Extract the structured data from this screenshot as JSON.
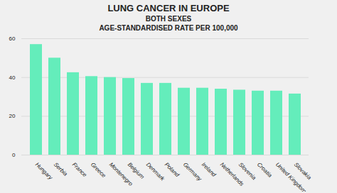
{
  "chart_data": {
    "type": "bar",
    "title": "LUNG CANCER IN EUROPE",
    "subtitle": [
      "BOTH SEXES",
      "AGE-STANDARDISED RATE PER 100,000"
    ],
    "categories": [
      "Hungary",
      "Serbia",
      "France",
      "Greece",
      "Montenegro",
      "Belgium",
      "Denmark",
      "Poland",
      "Germany",
      "Ireland",
      "Netherlands",
      "Slovenia",
      "Croatia",
      "United Kingdom",
      "Slovakia"
    ],
    "values": [
      57.0,
      50.0,
      42.5,
      40.5,
      40.0,
      39.5,
      37.0,
      37.0,
      34.5,
      34.5,
      34.0,
      33.5,
      33.0,
      33.0,
      31.5
    ],
    "color": "#64EDBB",
    "ylim": [
      0,
      60
    ],
    "yticks": [
      0,
      20,
      40,
      60
    ],
    "grid": true
  }
}
